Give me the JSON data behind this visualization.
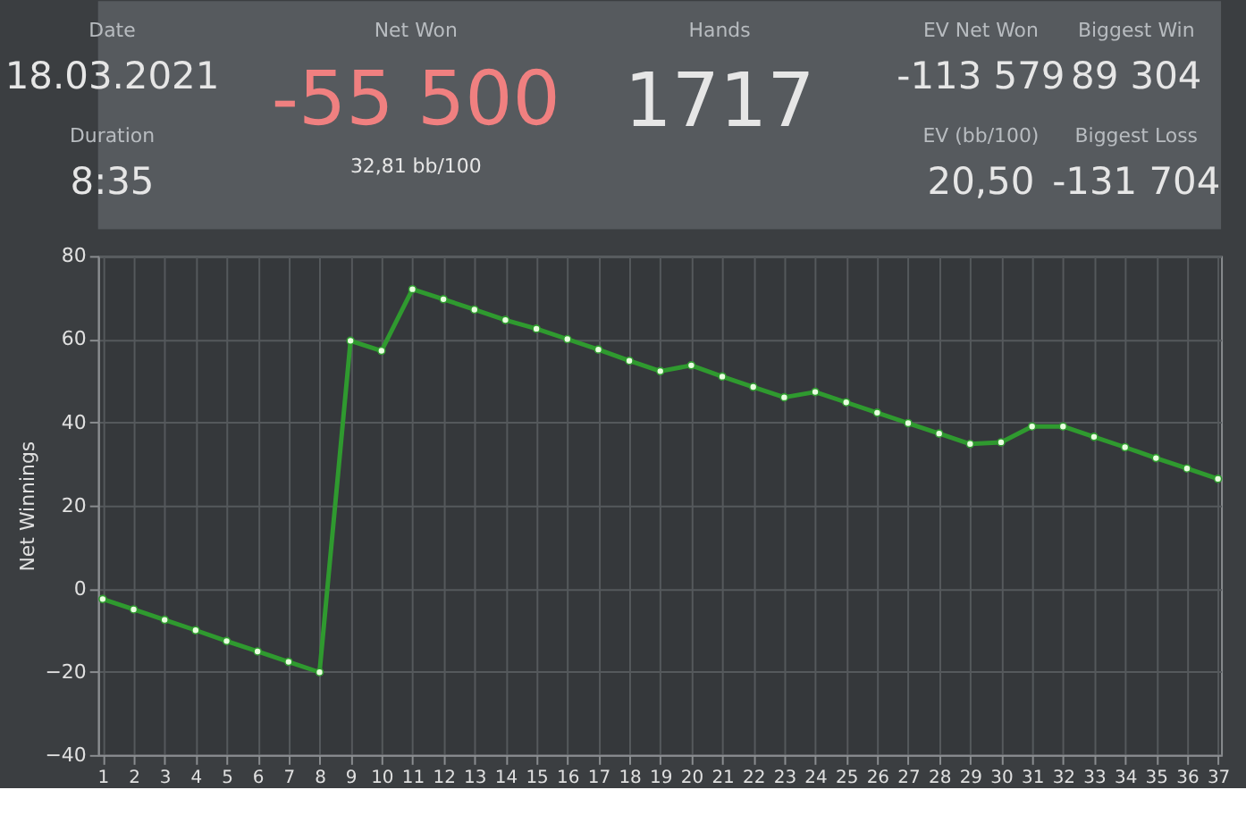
{
  "chart_data": [
    {
      "type": "other",
      "annotations": [
        "Date",
        "18.03.2021",
        "Duration",
        "8:35",
        "Net Won",
        "-55 500",
        "32,81 bb/100",
        "Hands",
        "1717",
        "EV Net Won",
        "-113 579",
        "Biggest Win",
        "89 304",
        "EV (bb/100)",
        "20,50",
        "Biggest Loss",
        "-131 704"
      ]
    },
    {
      "type": "line",
      "ylabel": "Net Winnings",
      "x": [
        1,
        2,
        3,
        4,
        5,
        6,
        7,
        8,
        9,
        10,
        11,
        12,
        13,
        14,
        15,
        16,
        17,
        18,
        19,
        20,
        21,
        22,
        23,
        24,
        25,
        26,
        27,
        28,
        29,
        30,
        31,
        32,
        33,
        34,
        35,
        36,
        37
      ],
      "series": [
        {
          "color": "#2f9a2f",
          "values": [
            -2.5,
            -5,
            -7.5,
            -10,
            -12.6,
            -15.1,
            -17.6,
            -20.1,
            59.6,
            57.2,
            72.0,
            69.6,
            67.1,
            64.6,
            62.5,
            60,
            57.5,
            54.8,
            52.3,
            53.7,
            51,
            48.5,
            46,
            47.3,
            44.8,
            42.3,
            39.8,
            37.3,
            34.8,
            35.2,
            39,
            39,
            36.5,
            34,
            31.4,
            28.9,
            26.4
          ]
        }
      ],
      "xlim": [
        0.85,
        37.1
      ],
      "xticks": [
        1,
        2,
        3,
        4,
        5,
        6,
        7,
        8,
        9,
        10,
        11,
        12,
        13,
        14,
        15,
        16,
        17,
        18,
        19,
        20,
        21,
        22,
        23,
        24,
        25,
        26,
        27,
        28,
        29,
        30,
        31,
        32,
        33,
        34,
        35,
        36,
        37
      ],
      "ylim": [
        -40,
        80
      ],
      "yticks": [
        -40,
        -20,
        0,
        20,
        40,
        60,
        80
      ],
      "grid": true,
      "marker": "circle",
      "line_style": "solid"
    }
  ]
}
